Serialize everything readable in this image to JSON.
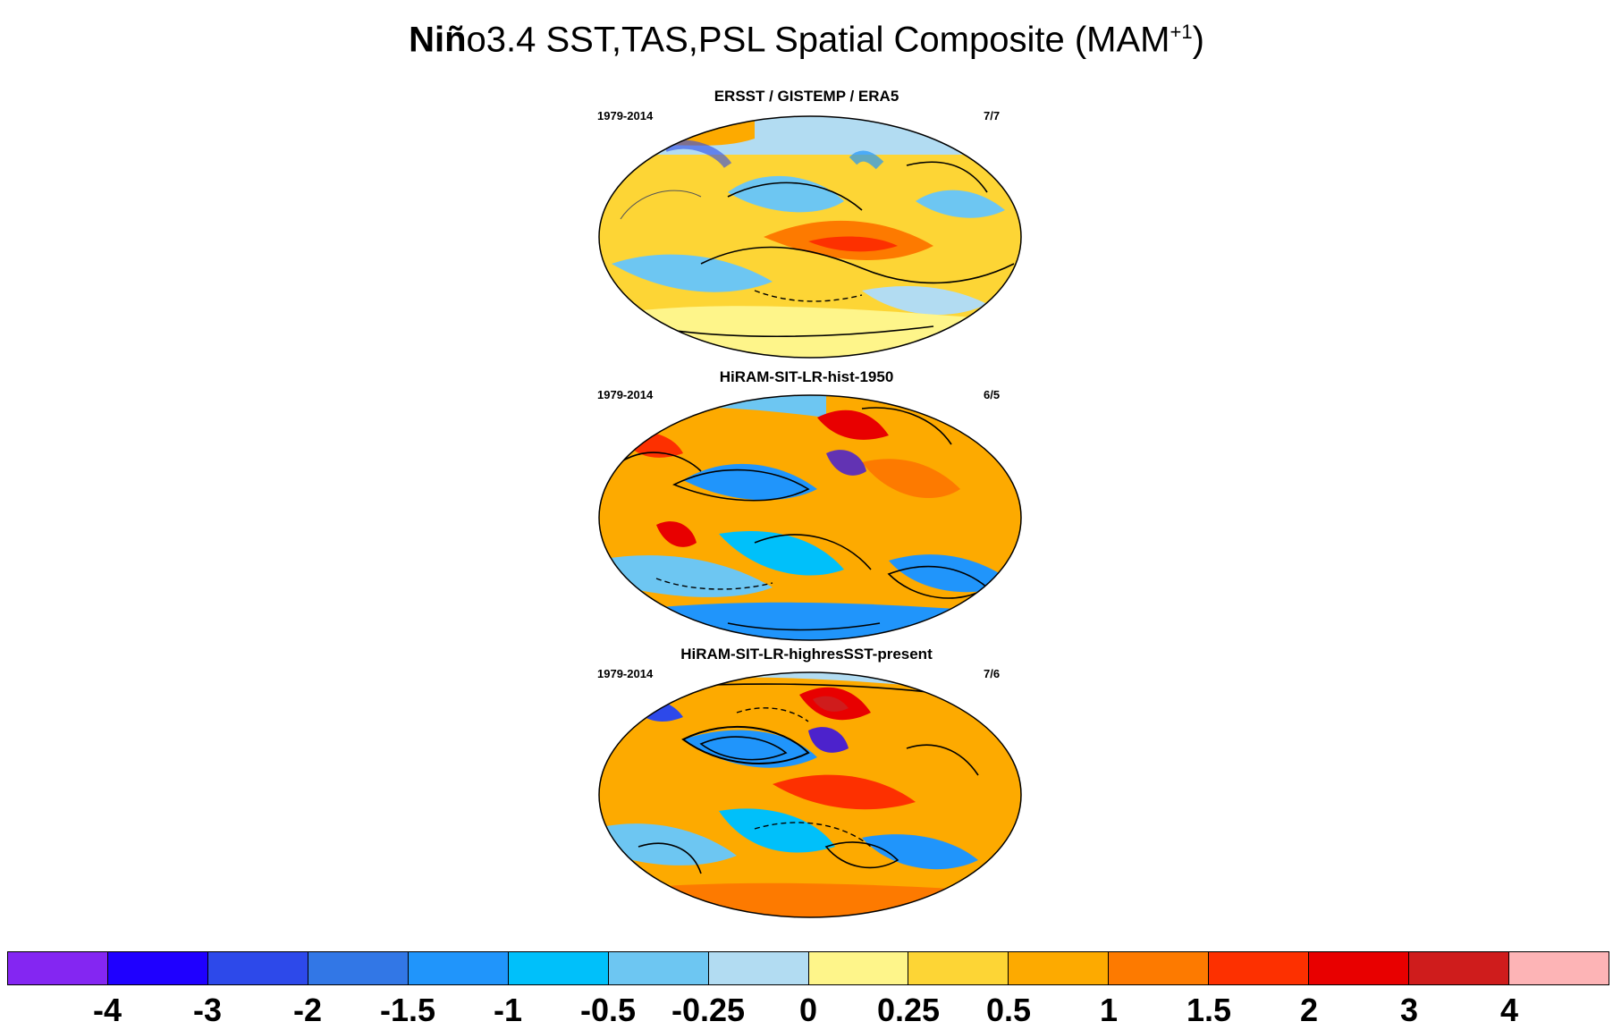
{
  "title": {
    "bold_part": "Niñ",
    "rest": "o3.4 SST,TAS,PSL Spatial Composite (MAM",
    "superscript": "+1",
    "closing": ")"
  },
  "panels": [
    {
      "title": "ERSST / GISTEMP / ERA5",
      "period": "1979-2014",
      "count": "7/7"
    },
    {
      "title": "HiRAM-SIT-LR-hist-1950",
      "period": "1979-2014",
      "count": "6/5"
    },
    {
      "title": "HiRAM-SIT-LR-highresSST-present",
      "period": "1979-2014",
      "count": "7/6"
    }
  ],
  "colorbar": {
    "colors": [
      "#8426f2",
      "#1f00ff",
      "#2d49ea",
      "#3277e6",
      "#2095fb",
      "#00c0fa",
      "#6dc6f2",
      "#b2dcf2",
      "#fef58a",
      "#fdd535",
      "#fdaa00",
      "#fd7a00",
      "#fd3000",
      "#e80000",
      "#cf1c1c",
      "#fdb4b6"
    ],
    "labels": [
      "-4",
      "-3",
      "-2",
      "-1.5",
      "-1",
      "-0.5",
      "-0.25",
      "0",
      "0.25",
      "0.5",
      "1",
      "1.5",
      "2",
      "3",
      "4"
    ]
  }
}
